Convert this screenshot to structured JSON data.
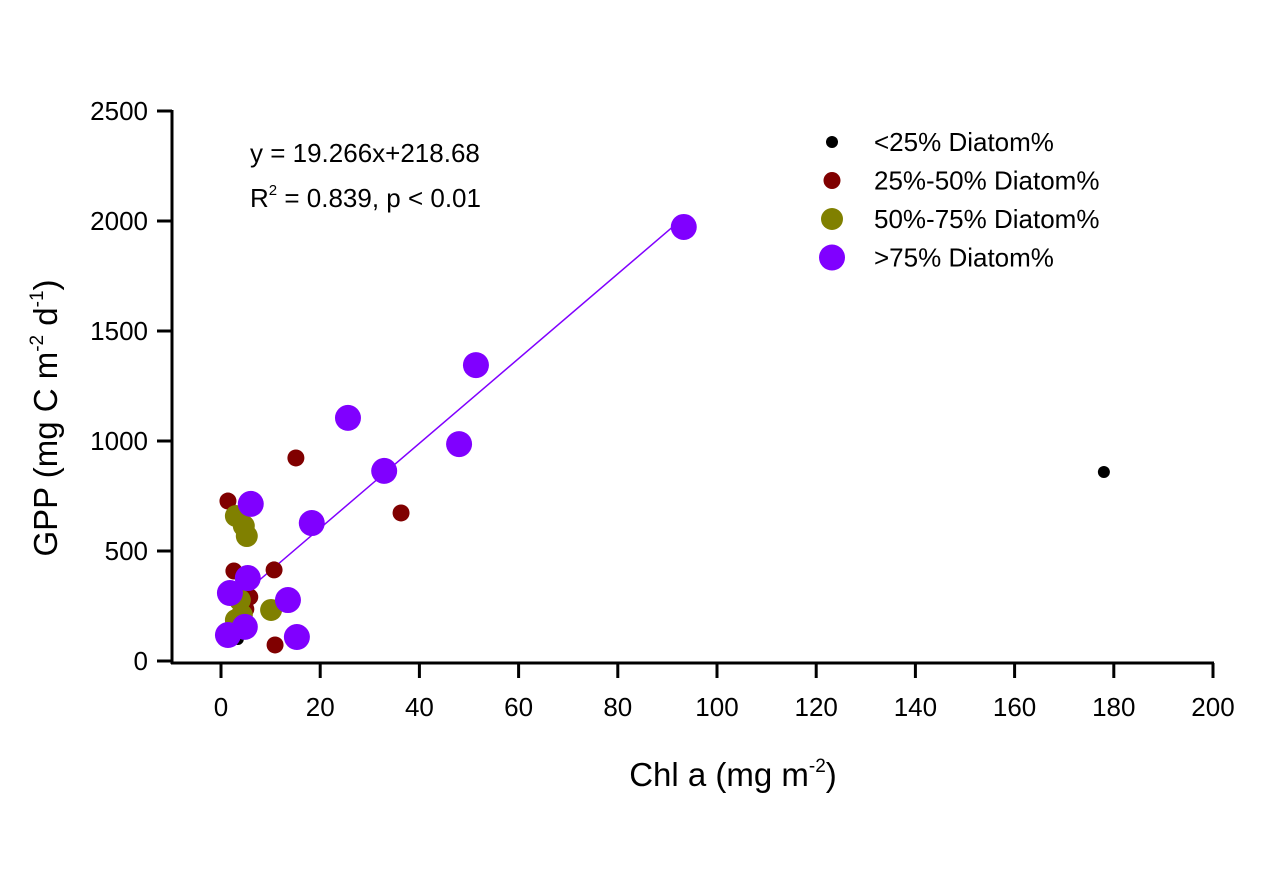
{
  "chart_data": {
    "type": "scatter",
    "title": "",
    "xlabel": "Chl a (mg m^-2)",
    "xlabel_parts": {
      "main": "Chl a (mg m",
      "sup": "-2",
      "close": ")"
    },
    "ylabel": "GPP (mg C m^-2 d^-1)",
    "ylabel_parts": {
      "a": "GPP (mg C m",
      "sup1": "-2",
      "b": " d",
      "sup2": "-1",
      "close": ")"
    },
    "xlim": [
      0,
      200
    ],
    "ylim": [
      0,
      2500
    ],
    "xticks": [
      0,
      20,
      40,
      60,
      80,
      100,
      120,
      140,
      160,
      180,
      200
    ],
    "yticks": [
      0,
      500,
      1000,
      1500,
      2000,
      2500
    ],
    "grid": false,
    "legend_position": "top-right",
    "annotations": {
      "equation": "y = 19.266x+218.68",
      "r2_prefix": "R",
      "r2_sup": "2",
      "r2_rest": " = 0.839, p < 0.01"
    },
    "regression": {
      "slope": 19.266,
      "intercept": 218.68,
      "x_range": [
        2,
        93
      ],
      "color": "#8000ff"
    },
    "series": [
      {
        "name": "<25% Diatom%",
        "color": "#000000",
        "marker_size": "small",
        "points": [
          [
            178,
            859
          ],
          [
            3.4,
            100
          ]
        ]
      },
      {
        "name": "25%-50% Diatom%",
        "color": "#800000",
        "marker_size": "medium",
        "points": [
          [
            15.1,
            923
          ],
          [
            36.3,
            673
          ],
          [
            1.4,
            727
          ],
          [
            10.7,
            414
          ],
          [
            2.6,
            409
          ],
          [
            5.8,
            291
          ],
          [
            10.9,
            73
          ],
          [
            5.0,
            236
          ]
        ]
      },
      {
        "name": "50%-75% Diatom%",
        "color": "#808000",
        "marker_size": "large",
        "points": [
          [
            3.0,
            659
          ],
          [
            4.6,
            614
          ],
          [
            5.2,
            568
          ],
          [
            10.1,
            232
          ],
          [
            3.8,
            277
          ],
          [
            3.0,
            186
          ],
          [
            4.2,
            209
          ]
        ]
      },
      {
        "name": ">75% Diatom%",
        "color": "#8000ff",
        "marker_size": "xlarge",
        "points": [
          [
            93.3,
            1973
          ],
          [
            51.4,
            1345
          ],
          [
            25.6,
            1105
          ],
          [
            48.0,
            986
          ],
          [
            32.9,
            864
          ],
          [
            18.3,
            627
          ],
          [
            6.0,
            714
          ],
          [
            5.4,
            377
          ],
          [
            1.8,
            309
          ],
          [
            13.5,
            277
          ],
          [
            15.3,
            109
          ],
          [
            4.8,
            155
          ],
          [
            1.4,
            118
          ]
        ]
      }
    ]
  }
}
